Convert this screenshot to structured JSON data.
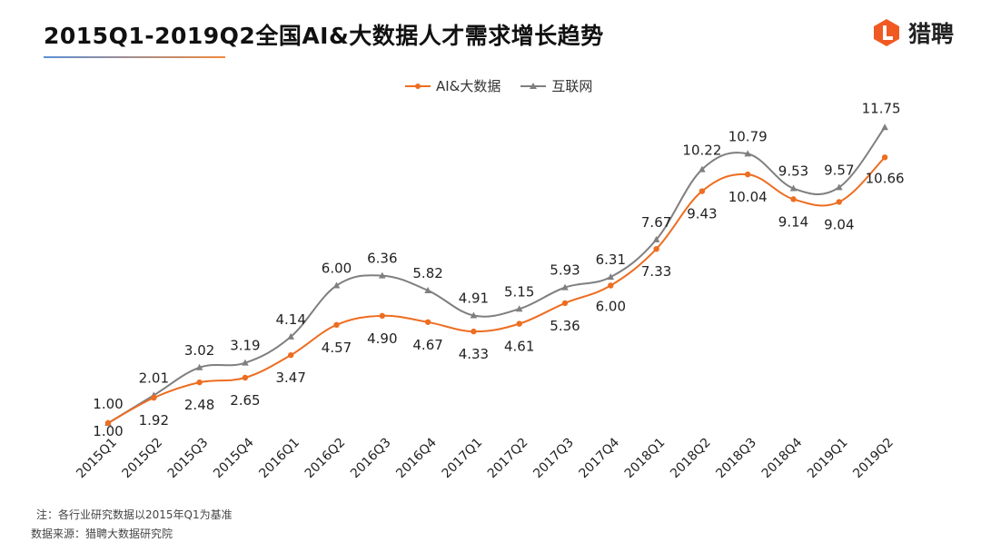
{
  "header": {
    "title": "2015Q1-2019Q2全国AI&大数据人才需求增长趋势",
    "brand": "猎聘",
    "brand_color": "#f05a22"
  },
  "footer": {
    "note": "注：各行业研究数据以2015年Q1为基准",
    "source": "数据来源：猎聘大数据研究院"
  },
  "chart_data": {
    "type": "line",
    "title": "2015Q1-2019Q2全国AI&大数据人才需求增长趋势",
    "xlabel": "",
    "ylabel": "",
    "ylim": [
      0,
      12
    ],
    "grid": false,
    "legend_position": "top-center",
    "categories": [
      "2015Q1",
      "2015Q2",
      "2015Q3",
      "2015Q4",
      "2016Q1",
      "2016Q2",
      "2016Q3",
      "2016Q4",
      "2017Q1",
      "2017Q2",
      "2017Q3",
      "2017Q4",
      "2018Q1",
      "2018Q2",
      "2018Q3",
      "2018Q4",
      "2019Q1",
      "2019Q2"
    ],
    "series": [
      {
        "name": "AI&大数据",
        "color": "#ed6d21",
        "marker": "circle",
        "values": [
          1.0,
          1.92,
          2.48,
          2.65,
          3.47,
          4.57,
          4.9,
          4.67,
          4.33,
          4.61,
          5.36,
          6.0,
          7.33,
          9.43,
          10.04,
          9.14,
          9.04,
          10.66
        ],
        "labels": [
          "1.00",
          "1.92",
          "2.48",
          "2.65",
          "3.47",
          "4.57",
          "4.90",
          "4.67",
          "4.33",
          "4.61",
          "5.36",
          "6.00",
          "7.33",
          "9.43",
          "10.04",
          "9.14",
          "9.04",
          "10.66"
        ]
      },
      {
        "name": "互联网",
        "color": "#7f7f7f",
        "marker": "triangle",
        "values": [
          1.0,
          2.01,
          3.02,
          3.19,
          4.14,
          6.0,
          6.36,
          5.82,
          4.91,
          5.15,
          5.93,
          6.31,
          7.67,
          10.22,
          10.79,
          9.53,
          9.57,
          11.75
        ],
        "labels": [
          "1.00",
          "2.01",
          "3.02",
          "3.19",
          "4.14",
          "6.00",
          "6.36",
          "5.82",
          "4.91",
          "5.15",
          "5.93",
          "6.31",
          "7.67",
          "10.22",
          "10.79",
          "9.53",
          "9.57",
          "11.75"
        ]
      }
    ]
  }
}
